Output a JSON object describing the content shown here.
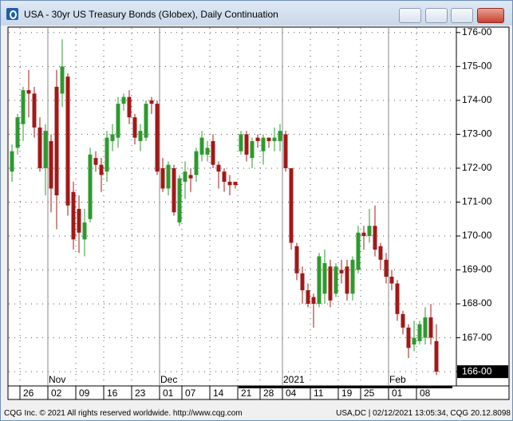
{
  "chart_data": {
    "type": "candlestick",
    "title": "USA - 30yr US Treasury Bonds (Globex), Daily Continuation",
    "categories": [
      null,
      null,
      "26",
      null,
      null,
      null,
      null,
      "02",
      null,
      null,
      null,
      null,
      "09",
      null,
      null,
      null,
      null,
      "16",
      null,
      null,
      null,
      null,
      "23",
      null,
      null,
      null,
      null,
      "01",
      null,
      null,
      null,
      "07",
      null,
      null,
      null,
      null,
      "14",
      null,
      null,
      null,
      null,
      "21",
      null,
      null,
      null,
      "28",
      null,
      null,
      null,
      "04",
      null,
      null,
      null,
      null,
      "11",
      null,
      null,
      null,
      null,
      "19",
      null,
      null,
      null,
      "25",
      null,
      null,
      null,
      null,
      "01",
      null,
      null,
      null,
      null,
      "08",
      null,
      null,
      null
    ],
    "month_labels": [
      {
        "index": 7,
        "label": "Nov"
      },
      {
        "index": 27,
        "label": "Dec"
      },
      {
        "index": 49,
        "label": "2021"
      },
      {
        "index": 68,
        "label": "Feb"
      }
    ],
    "open": [
      171.9,
      172.6,
      173.3,
      174.3,
      174.2,
      173.2,
      172.0,
      172.8,
      174.4,
      174.2,
      174.7,
      171.3,
      170.8,
      169.9,
      170.5,
      172.3,
      172.1,
      171.9,
      172.8,
      172.9,
      173.9,
      174.1,
      173.5,
      172.8,
      172.9,
      174.0,
      173.9,
      172.0,
      171.4,
      172.0,
      170.4,
      171.6,
      171.8,
      171.8,
      172.4,
      172.4,
      172.8,
      172.1,
      171.9,
      171.6,
      171.6,
      172.5,
      173.0,
      172.3,
      172.9,
      172.5,
      172.9,
      172.8,
      172.8,
      173.0,
      172.0,
      169.7,
      168.9,
      168.4,
      168.2,
      168.0,
      168.3,
      169.1,
      168.3,
      169.0,
      169.1,
      168.3,
      169.0,
      170.1,
      170.0,
      170.3,
      169.7,
      169.3,
      168.8,
      168.6,
      167.7,
      167.3,
      166.8,
      166.9,
      167.0,
      167.6,
      166.9
    ],
    "high": [
      172.7,
      173.6,
      174.4,
      174.9,
      174.4,
      173.5,
      173.3,
      173.0,
      174.9,
      175.8,
      174.8,
      171.6,
      171.2,
      170.8,
      172.6,
      172.5,
      172.3,
      173.1,
      173.3,
      174.1,
      174.2,
      174.3,
      173.6,
      173.3,
      174.0,
      174.1,
      174.0,
      172.3,
      172.2,
      172.1,
      171.8,
      172.2,
      172.0,
      172.6,
      173.1,
      172.8,
      173.0,
      172.2,
      172.0,
      171.8,
      171.6,
      173.1,
      173.1,
      172.9,
      173.0,
      173.0,
      172.9,
      173.2,
      173.3,
      173.1,
      172.0,
      169.8,
      169.1,
      168.6,
      168.3,
      169.5,
      169.6,
      169.3,
      169.2,
      169.3,
      169.3,
      169.4,
      170.3,
      170.3,
      170.8,
      170.9,
      169.8,
      169.5,
      169.0,
      168.7,
      167.8,
      167.4,
      167.5,
      167.5,
      167.9,
      168.0,
      167.4
    ],
    "low": [
      171.6,
      172.4,
      172.8,
      173.5,
      172.9,
      171.9,
      171.2,
      170.7,
      170.2,
      173.8,
      170.6,
      169.6,
      169.5,
      169.4,
      170.4,
      171.9,
      171.3,
      171.6,
      172.5,
      172.6,
      173.7,
      173.3,
      172.7,
      172.5,
      172.8,
      173.6,
      171.8,
      171.3,
      171.2,
      170.6,
      170.3,
      171.1,
      171.3,
      171.6,
      172.2,
      172.2,
      172.0,
      171.4,
      171.3,
      171.2,
      171.4,
      172.4,
      172.2,
      172.0,
      172.6,
      172.1,
      172.6,
      172.5,
      172.5,
      171.9,
      169.6,
      168.7,
      168.0,
      167.9,
      167.3,
      167.9,
      168.0,
      167.9,
      168.2,
      168.6,
      168.1,
      168.1,
      168.9,
      169.6,
      169.8,
      169.4,
      169.0,
      168.6,
      168.4,
      167.5,
      167.1,
      166.4,
      166.6,
      166.8,
      166.8,
      166.8,
      165.9
    ],
    "close": [
      172.5,
      173.5,
      174.3,
      174.2,
      173.2,
      172.0,
      173.1,
      171.4,
      171.2,
      175.0,
      170.9,
      169.9,
      170.1,
      170.4,
      172.4,
      172.1,
      171.8,
      172.9,
      173.0,
      173.9,
      174.1,
      173.5,
      172.9,
      173.1,
      173.9,
      173.9,
      171.9,
      171.4,
      172.1,
      170.7,
      171.7,
      171.9,
      171.7,
      172.5,
      172.9,
      172.6,
      172.1,
      171.9,
      171.6,
      171.5,
      171.5,
      173.0,
      172.4,
      172.8,
      172.8,
      172.9,
      172.8,
      172.9,
      173.1,
      172.0,
      169.8,
      168.9,
      168.4,
      168.0,
      168.0,
      169.4,
      169.2,
      168.1,
      169.1,
      168.9,
      168.3,
      169.3,
      170.1,
      170.0,
      170.3,
      169.6,
      169.3,
      168.8,
      168.6,
      167.7,
      167.3,
      166.7,
      167.0,
      167.4,
      167.6,
      167.0,
      166.0
    ],
    "up_color": "#2e9a2e",
    "down_color": "#a31818",
    "ylim": [
      165.58,
      176.16
    ],
    "yticks": [
      {
        "value": 166,
        "label": "166-00"
      },
      {
        "value": 167,
        "label": "167-00"
      },
      {
        "value": 168,
        "label": "168-00"
      },
      {
        "value": 169,
        "label": "169-00"
      },
      {
        "value": 170,
        "label": "170-00"
      },
      {
        "value": 171,
        "label": "171-00"
      },
      {
        "value": 172,
        "label": "172-00"
      },
      {
        "value": 173,
        "label": "173-00"
      },
      {
        "value": 174,
        "label": "174-00"
      },
      {
        "value": 175,
        "label": "175-00"
      },
      {
        "value": 176,
        "label": "176-00"
      }
    ],
    "grid": true
  },
  "status_bar": {
    "left": "CQG Inc. © 2021 All rights reserved worldwide. http://www.cqg.com",
    "right": "USA,DC | 02/12/2021 13:05:34, CQG 20.12.8098"
  }
}
